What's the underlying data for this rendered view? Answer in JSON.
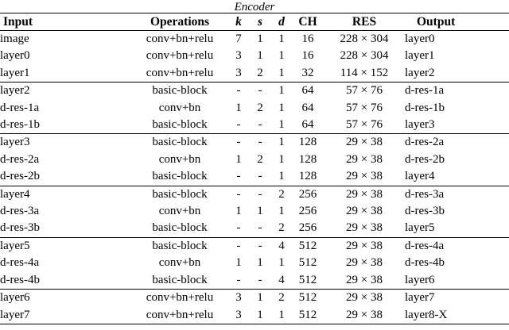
{
  "title": "Encoder",
  "colors": {
    "text": "#000000",
    "background": "#ffffff",
    "rule": "#000000"
  },
  "table": {
    "headers": [
      {
        "label": "Input",
        "style": "bold"
      },
      {
        "label": "Operations",
        "style": "bold"
      },
      {
        "label": "k",
        "style": "bold-italic"
      },
      {
        "label": "s",
        "style": "bold-italic"
      },
      {
        "label": "d",
        "style": "bold-italic"
      },
      {
        "label": "CH",
        "style": "bold"
      },
      {
        "label": "RES",
        "style": "bold"
      },
      {
        "label": "Output",
        "style": "bold"
      }
    ],
    "sections": [
      {
        "rows": [
          [
            "image",
            "conv+bn+relu",
            "7",
            "1",
            "1",
            "16",
            "228 × 304",
            "layer0"
          ],
          [
            "layer0",
            "conv+bn+relu",
            "3",
            "1",
            "1",
            "16",
            "228 × 304",
            "layer1"
          ],
          [
            "layer1",
            "conv+bn+relu",
            "3",
            "2",
            "1",
            "32",
            "114 × 152",
            "layer2"
          ]
        ]
      },
      {
        "rows": [
          [
            "layer2",
            "basic-block",
            "-",
            "-",
            "1",
            "64",
            "57 × 76",
            "d-res-1a"
          ],
          [
            "d-res-1a",
            "conv+bn",
            "1",
            "2",
            "1",
            "64",
            "57 × 76",
            "d-res-1b"
          ],
          [
            "d-res-1b",
            "basic-block",
            "-",
            "-",
            "1",
            "64",
            "57 × 76",
            "layer3"
          ]
        ]
      },
      {
        "rows": [
          [
            "layer3",
            "basic-block",
            "-",
            "-",
            "1",
            "128",
            "29 × 38",
            "d-res-2a"
          ],
          [
            "d-res-2a",
            "conv+bn",
            "1",
            "2",
            "1",
            "128",
            "29 × 38",
            "d-res-2b"
          ],
          [
            "d-res-2b",
            "basic-block",
            "-",
            "-",
            "1",
            "128",
            "29 × 38",
            "layer4"
          ]
        ]
      },
      {
        "rows": [
          [
            "layer4",
            "basic-block",
            "-",
            "-",
            "2",
            "256",
            "29 × 38",
            "d-res-3a"
          ],
          [
            "d-res-3a",
            "conv+bn",
            "1",
            "1",
            "1",
            "256",
            "29 × 38",
            "d-res-3b"
          ],
          [
            "d-res-3b",
            "basic-block",
            "-",
            "-",
            "2",
            "256",
            "29 × 38",
            "layer5"
          ]
        ]
      },
      {
        "rows": [
          [
            "layer5",
            "basic-block",
            "-",
            "-",
            "4",
            "512",
            "29 × 38",
            "d-res-4a"
          ],
          [
            "d-res-4a",
            "conv+bn",
            "1",
            "1",
            "1",
            "512",
            "29 × 38",
            "d-res-4b"
          ],
          [
            "d-res-4b",
            "basic-block",
            "-",
            "-",
            "4",
            "512",
            "29 × 38",
            "layer6"
          ]
        ]
      },
      {
        "rows": [
          [
            "layer6",
            "conv+bn+relu",
            "3",
            "1",
            "2",
            "512",
            "29 × 38",
            "layer7"
          ],
          [
            "layer7",
            "conv+bn+relu",
            "3",
            "1",
            "1",
            "512",
            "29 × 38",
            "layer8-X"
          ]
        ]
      }
    ]
  }
}
